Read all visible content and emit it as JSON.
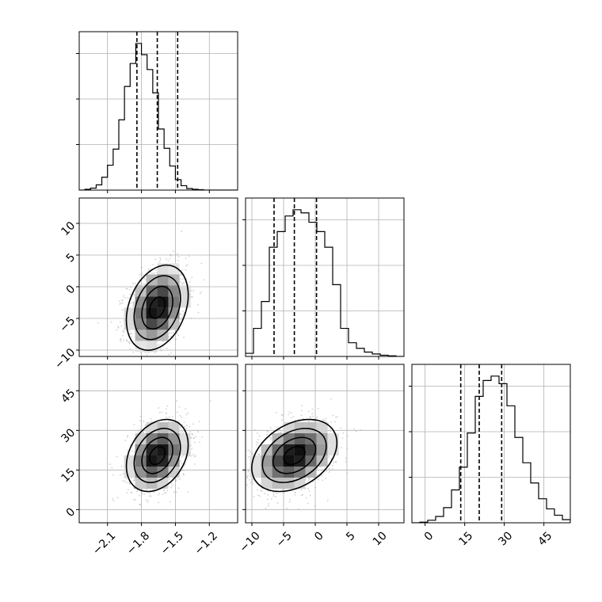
{
  "colors": {
    "background": "#ffffff",
    "axes": "#000000",
    "grid": "#b0b0b0",
    "scatter": "#9a9a9a",
    "density_light": "#d9d9d9",
    "density_dark": "#000000"
  },
  "chart_data": {
    "type": "corner",
    "grid": true,
    "parameters": [
      {
        "range": [
          -2.35,
          -0.95
        ],
        "ticks": [
          -2.1,
          -1.8,
          -1.5,
          -1.2
        ],
        "tick_labels": [
          "−2.1",
          "−1.8",
          "−1.5",
          "−1.2"
        ],
        "quantiles": [
          -1.84,
          -1.66,
          -1.48
        ],
        "hist": {
          "bin_width": 0.05,
          "start": -2.35,
          "counts": [
            0,
            0.2,
            0.5,
            1.3,
            3.2,
            6.2,
            10.2,
            17.5,
            25.8,
            31.5,
            36.5,
            33.7,
            30.0,
            24.2,
            15.2,
            10.4,
            6.0,
            2.6,
            1.1,
            0.4,
            0.2,
            0.1,
            0,
            0,
            0,
            0,
            0,
            0
          ]
        }
      },
      {
        "range": [
          -11,
          14
        ],
        "ticks": [
          -10,
          -5,
          0,
          5,
          10
        ],
        "tick_labels": [
          "−10",
          "−5",
          "0",
          "5",
          "10"
        ],
        "quantiles": [
          -6.5,
          -3.3,
          0.2
        ],
        "hist": {
          "bin_width": 1.25,
          "start": -11,
          "counts": [
            0.5,
            4.5,
            8.8,
            17.5,
            20.0,
            22.5,
            23.5,
            23.0,
            21.5,
            20.0,
            17.5,
            11.5,
            4.5,
            2.2,
            1.3,
            0.7,
            0.4,
            0.2,
            0.1,
            0
          ]
        }
      },
      {
        "range": [
          -5,
          55
        ],
        "ticks": [
          0,
          15,
          30,
          45
        ],
        "tick_labels": [
          "0",
          "15",
          "30",
          "45"
        ],
        "quantiles": [
          13.5,
          20.5,
          29.0
        ],
        "hist": {
          "bin_width": 3,
          "start": -5,
          "counts": [
            0,
            0.1,
            0.4,
            1.0,
            2.4,
            5.2,
            8.8,
            14.2,
            20.0,
            22.5,
            23.2,
            22.0,
            18.5,
            13.5,
            9.5,
            6.3,
            3.8,
            2.2,
            1.2,
            0.5,
            0.1
          ]
        }
      }
    ],
    "pairs": [
      {
        "x": 0,
        "y": 1,
        "center": [
          -1.66,
          -3.3
        ],
        "spread": [
          0.13,
          3.2
        ],
        "correlation": 0.3
      },
      {
        "x": 0,
        "y": 2,
        "center": [
          -1.66,
          20.5
        ],
        "spread": [
          0.13,
          6.5
        ],
        "correlation": 0.3
      },
      {
        "x": 1,
        "y": 2,
        "center": [
          -3.3,
          20.5
        ],
        "spread": [
          3.2,
          6.5
        ],
        "correlation": 0.35
      }
    ],
    "contour_levels_sigma": [
      0.5,
      1.0,
      1.5,
      2.0
    ]
  }
}
